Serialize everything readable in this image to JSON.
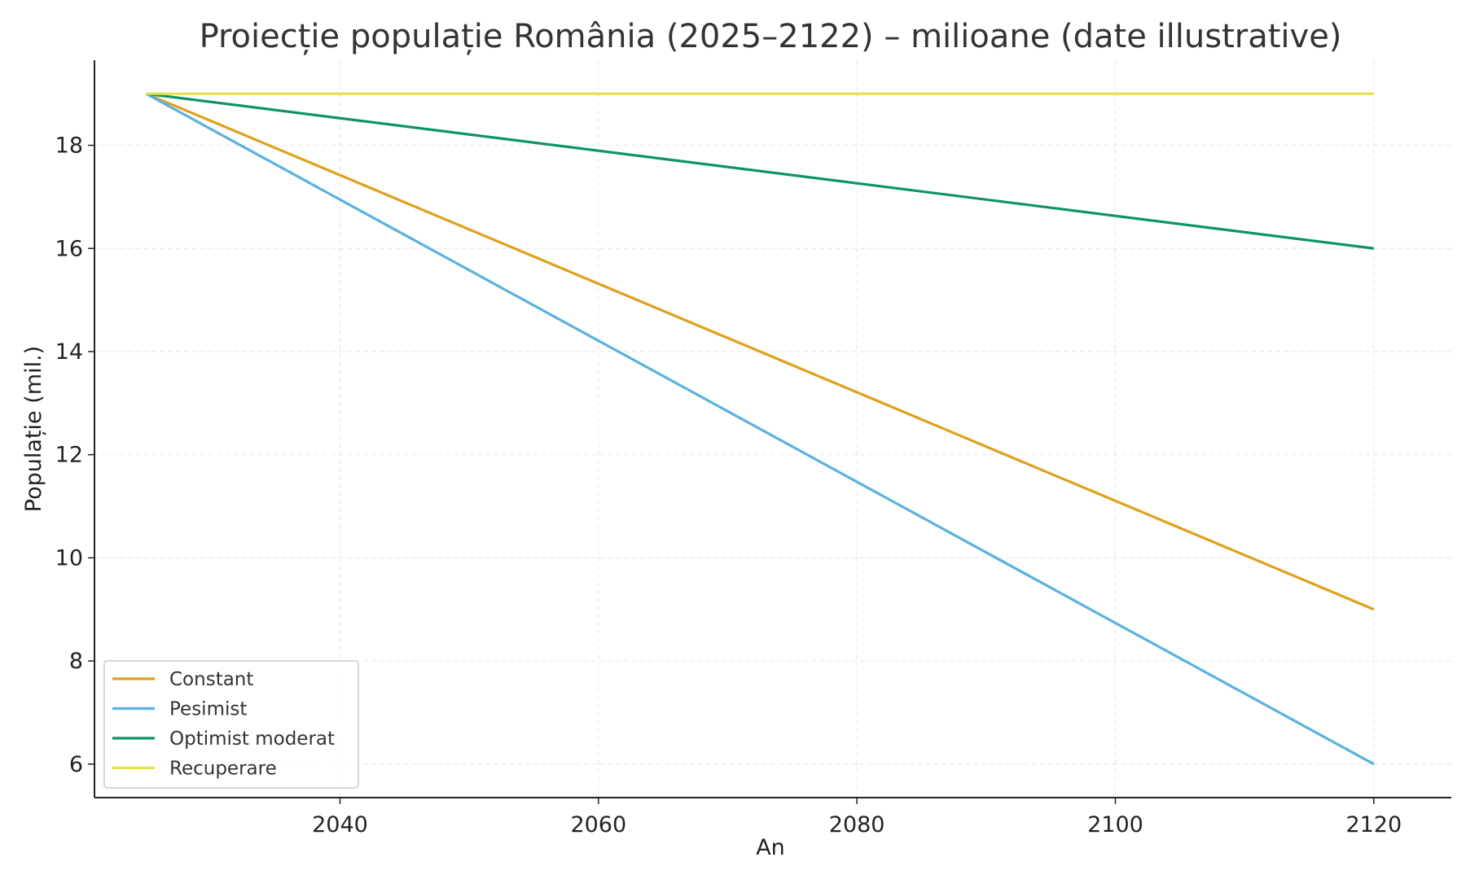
{
  "chart_data": {
    "type": "line",
    "title": "Proiecție populație România (2025–2122) – milioane (date illustrative)",
    "xlabel": "An",
    "ylabel": "Populație (mil.)",
    "xlim": [
      2021,
      2126
    ],
    "ylim": [
      5.35,
      19.65
    ],
    "x_ticks": [
      2040,
      2060,
      2080,
      2100,
      2120
    ],
    "y_ticks": [
      6,
      8,
      10,
      12,
      14,
      16,
      18
    ],
    "grid": true,
    "legend_position": "bottom-left",
    "x": [
      2025,
      2120
    ],
    "series": [
      {
        "name": "Constant",
        "color": "#E0A01C",
        "values": [
          19.0,
          9.0
        ]
      },
      {
        "name": "Pesimist",
        "color": "#5AB2DD",
        "values": [
          19.0,
          6.0
        ]
      },
      {
        "name": "Optimist moderat",
        "color": "#0E9367",
        "values": [
          19.0,
          16.0
        ]
      },
      {
        "name": "Recuperare",
        "color": "#E5DF4A",
        "values": [
          19.0,
          19.0
        ]
      }
    ]
  }
}
